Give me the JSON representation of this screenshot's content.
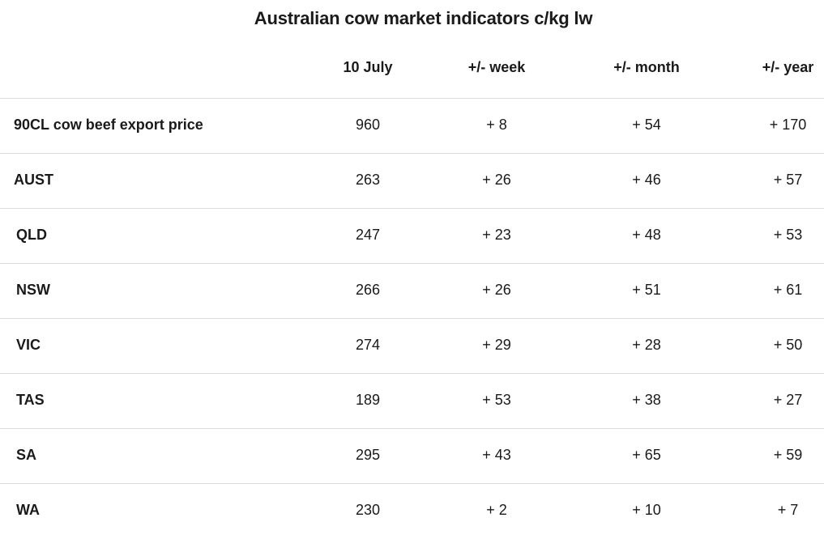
{
  "chart_data": {
    "type": "table",
    "title": "Australian cow market indicators c/kg lw",
    "columns": [
      "10 July",
      "+/- week",
      "+/- month",
      "+/- year"
    ],
    "rows": [
      {
        "label": "90CL cow beef export price",
        "values": [
          "960",
          "+ 8",
          "+ 54",
          "+ 170"
        ]
      },
      {
        "label": "AUST",
        "values": [
          "263",
          "+ 26",
          "+ 46",
          "+ 57"
        ]
      },
      {
        "label": "QLD",
        "values": [
          "247",
          "+ 23",
          "+ 48",
          "+ 53"
        ]
      },
      {
        "label": "NSW",
        "values": [
          "266",
          "+ 26",
          "+ 51",
          "+ 61"
        ]
      },
      {
        "label": "VIC",
        "values": [
          "274",
          "+ 29",
          "+ 28",
          "+ 50"
        ]
      },
      {
        "label": "TAS",
        "values": [
          "189",
          "+ 53",
          "+ 38",
          "+ 27"
        ]
      },
      {
        "label": "SA",
        "values": [
          "295",
          "+ 43",
          "+ 65",
          "+ 59"
        ]
      },
      {
        "label": "WA",
        "values": [
          "230",
          "+ 2",
          "+ 10",
          "+ 7"
        ]
      }
    ]
  }
}
